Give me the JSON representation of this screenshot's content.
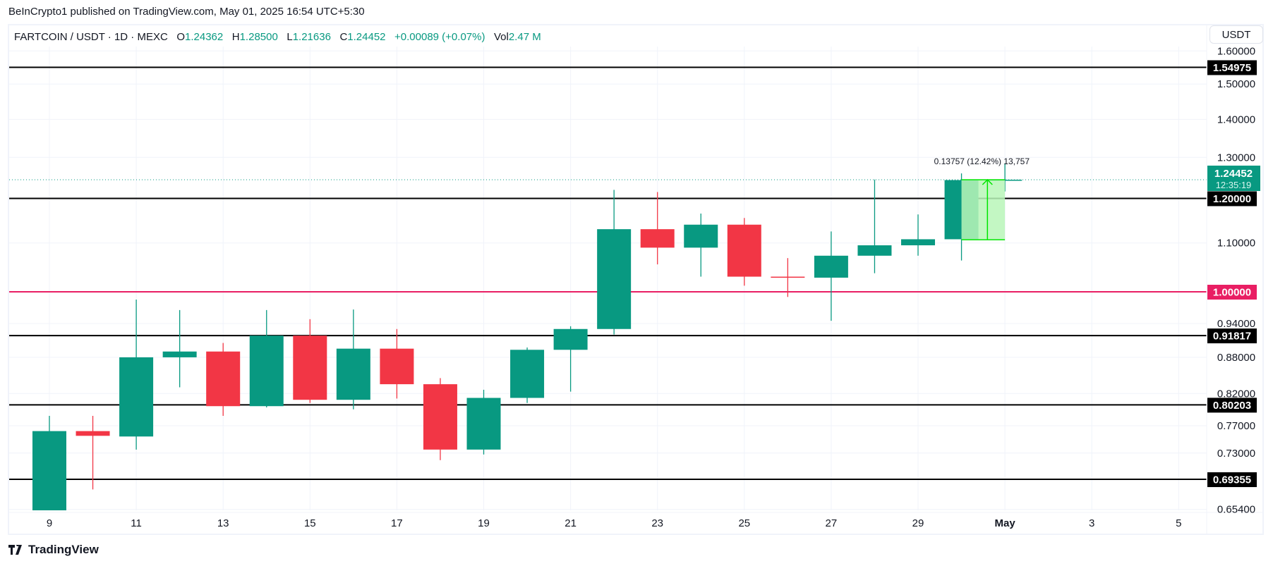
{
  "published": "BeInCrypto1 published on TradingView.com, May 01, 2025 16:54 UTC+5:30",
  "legend": {
    "symbol": "FARTCOIN / USDT · 1D · MEXC",
    "o_label": "O",
    "o": "1.24362",
    "h_label": "H",
    "h": "1.28500",
    "l_label": "L",
    "l": "1.21636",
    "c_label": "C",
    "c": "1.24452",
    "change": "+0.00089 (+0.07%)",
    "vol_label": "Vol",
    "vol": "2.47 M"
  },
  "currency_button": "USDT",
  "footer": {
    "logo_text": "TradingView"
  },
  "colors": {
    "up": "#089981",
    "down": "#f23645",
    "level": "#000000",
    "key_level": "#e91e63",
    "measure_fill": "#b9f6b9",
    "measure_line": "#00e600"
  },
  "chart_data": {
    "type": "candlestick",
    "symbol": "FARTCOIN / USDT",
    "interval": "1D",
    "y_scale": "log",
    "ylim": [
      0.645,
      1.62
    ],
    "grid": true,
    "y_ticks": [
      "1.60000",
      "1.50000",
      "1.40000",
      "1.30000",
      "1.10000",
      "0.94000",
      "0.88000",
      "0.82000",
      "0.77000",
      "0.73000",
      "0.65400"
    ],
    "x_tick_labels": [
      {
        "label": "9",
        "date": "2025-04-09"
      },
      {
        "label": "11",
        "date": "2025-04-11"
      },
      {
        "label": "13",
        "date": "2025-04-13"
      },
      {
        "label": "15",
        "date": "2025-04-15"
      },
      {
        "label": "17",
        "date": "2025-04-17"
      },
      {
        "label": "19",
        "date": "2025-04-19"
      },
      {
        "label": "21",
        "date": "2025-04-21"
      },
      {
        "label": "23",
        "date": "2025-04-23"
      },
      {
        "label": "25",
        "date": "2025-04-25"
      },
      {
        "label": "27",
        "date": "2025-04-27"
      },
      {
        "label": "29",
        "date": "2025-04-29"
      },
      {
        "label": "May",
        "date": "2025-05-01"
      },
      {
        "label": "3",
        "date": "2025-05-03"
      },
      {
        "label": "5",
        "date": "2025-05-05"
      }
    ],
    "candles": [
      {
        "date": "2025-04-09",
        "o": 0.648,
        "h": 0.785,
        "l": 0.64,
        "c": 0.762
      },
      {
        "date": "2025-04-10",
        "o": 0.762,
        "h": 0.785,
        "l": 0.68,
        "c": 0.755
      },
      {
        "date": "2025-04-11",
        "o": 0.754,
        "h": 0.985,
        "l": 0.735,
        "c": 0.88
      },
      {
        "date": "2025-04-12",
        "o": 0.88,
        "h": 0.965,
        "l": 0.83,
        "c": 0.89
      },
      {
        "date": "2025-04-13",
        "o": 0.89,
        "h": 0.905,
        "l": 0.785,
        "c": 0.8
      },
      {
        "date": "2025-04-14",
        "o": 0.8,
        "h": 0.965,
        "l": 0.798,
        "c": 0.918
      },
      {
        "date": "2025-04-15",
        "o": 0.918,
        "h": 0.948,
        "l": 0.805,
        "c": 0.81
      },
      {
        "date": "2025-04-16",
        "o": 0.81,
        "h": 0.966,
        "l": 0.795,
        "c": 0.895
      },
      {
        "date": "2025-04-17",
        "o": 0.895,
        "h": 0.93,
        "l": 0.812,
        "c": 0.835
      },
      {
        "date": "2025-04-18",
        "o": 0.835,
        "h": 0.845,
        "l": 0.72,
        "c": 0.735
      },
      {
        "date": "2025-04-19",
        "o": 0.735,
        "h": 0.826,
        "l": 0.728,
        "c": 0.813
      },
      {
        "date": "2025-04-20",
        "o": 0.813,
        "h": 0.897,
        "l": 0.805,
        "c": 0.893
      },
      {
        "date": "2025-04-21",
        "o": 0.893,
        "h": 0.935,
        "l": 0.823,
        "c": 0.93
      },
      {
        "date": "2025-04-22",
        "o": 0.93,
        "h": 1.22,
        "l": 0.92,
        "c": 1.13
      },
      {
        "date": "2025-04-23",
        "o": 1.13,
        "h": 1.215,
        "l": 1.055,
        "c": 1.09
      },
      {
        "date": "2025-04-24",
        "o": 1.09,
        "h": 1.165,
        "l": 1.03,
        "c": 1.14
      },
      {
        "date": "2025-04-25",
        "o": 1.14,
        "h": 1.155,
        "l": 1.012,
        "c": 1.03
      },
      {
        "date": "2025-04-26",
        "o": 1.03,
        "h": 1.068,
        "l": 0.99,
        "c": 1.028
      },
      {
        "date": "2025-04-27",
        "o": 1.028,
        "h": 1.125,
        "l": 0.945,
        "c": 1.073
      },
      {
        "date": "2025-04-28",
        "o": 1.073,
        "h": 1.245,
        "l": 1.037,
        "c": 1.095
      },
      {
        "date": "2025-04-29",
        "o": 1.095,
        "h": 1.163,
        "l": 1.073,
        "c": 1.108
      },
      {
        "date": "2025-04-30",
        "o": 1.108,
        "h": 1.26,
        "l": 1.063,
        "c": 1.24362
      },
      {
        "date": "2025-05-01",
        "o": 1.24362,
        "h": 1.285,
        "l": 1.21636,
        "c": 1.24452
      }
    ],
    "horizontal_levels": [
      {
        "value": 1.54975,
        "label": "1.54975",
        "color": "#000000"
      },
      {
        "value": 1.2,
        "label": "1.20000",
        "color": "#000000"
      },
      {
        "value": 1.0,
        "label": "1.00000",
        "color": "#e91e63"
      },
      {
        "value": 0.91817,
        "label": "0.91817",
        "color": "#000000"
      },
      {
        "value": 0.80203,
        "label": "0.80203",
        "color": "#000000"
      },
      {
        "value": 0.69355,
        "label": "0.69355",
        "color": "#000000"
      }
    ],
    "last_price": {
      "value": 1.24452,
      "label": "1.24452",
      "countdown": "12:35:19"
    },
    "measure": {
      "from_price": 1.10695,
      "to_price": 1.24452,
      "from_date": "2025-04-30",
      "to_date": "2025-05-01",
      "label": "0.13757 (12.42%) 13,757"
    }
  }
}
